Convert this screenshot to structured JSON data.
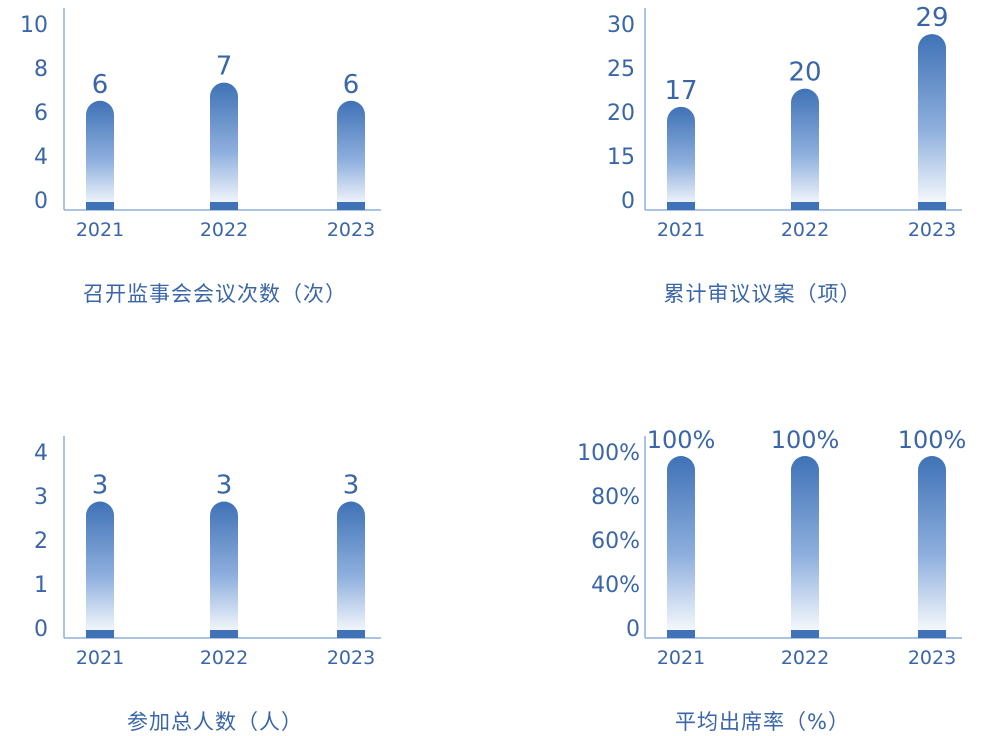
{
  "colors": {
    "bar_top": "#3f72b6",
    "bar_bottom": "#ffffff",
    "base": "#3f72b6",
    "axis": "#8fb1dc",
    "text": "#3a66a8"
  },
  "chart_data": [
    {
      "type": "bar",
      "title": "召开监事会会议次数（次）",
      "categories": [
        "2021",
        "2022",
        "2023"
      ],
      "values": [
        6,
        7,
        6
      ],
      "value_labels": [
        "6",
        "7",
        "6"
      ],
      "yticks": [
        "0",
        "4",
        "6",
        "8",
        "10"
      ],
      "ylim": [
        0,
        10
      ],
      "grid": false
    },
    {
      "type": "bar",
      "title": "累计审议议案（项）",
      "categories": [
        "2021",
        "2022",
        "2023"
      ],
      "values": [
        17,
        20,
        29
      ],
      "value_labels": [
        "17",
        "20",
        "29"
      ],
      "yticks": [
        "0",
        "15",
        "20",
        "25",
        "30"
      ],
      "ylim": [
        0,
        30
      ],
      "grid": false
    },
    {
      "type": "bar",
      "title": "参加总人数（人）",
      "categories": [
        "2021",
        "2022",
        "2023"
      ],
      "values": [
        3,
        3,
        3
      ],
      "value_labels": [
        "3",
        "3",
        "3"
      ],
      "yticks": [
        "0",
        "1",
        "2",
        "3",
        "4"
      ],
      "ylim": [
        0,
        4
      ],
      "grid": false
    },
    {
      "type": "bar",
      "title": "平均出席率（%）",
      "categories": [
        "2021",
        "2022",
        "2023"
      ],
      "values": [
        100,
        100,
        100
      ],
      "value_labels": [
        "100%",
        "100%",
        "100%"
      ],
      "yticks": [
        "0",
        "40%",
        "60%",
        "80%",
        "100%"
      ],
      "ylim": [
        0,
        100
      ],
      "grid": false
    }
  ]
}
